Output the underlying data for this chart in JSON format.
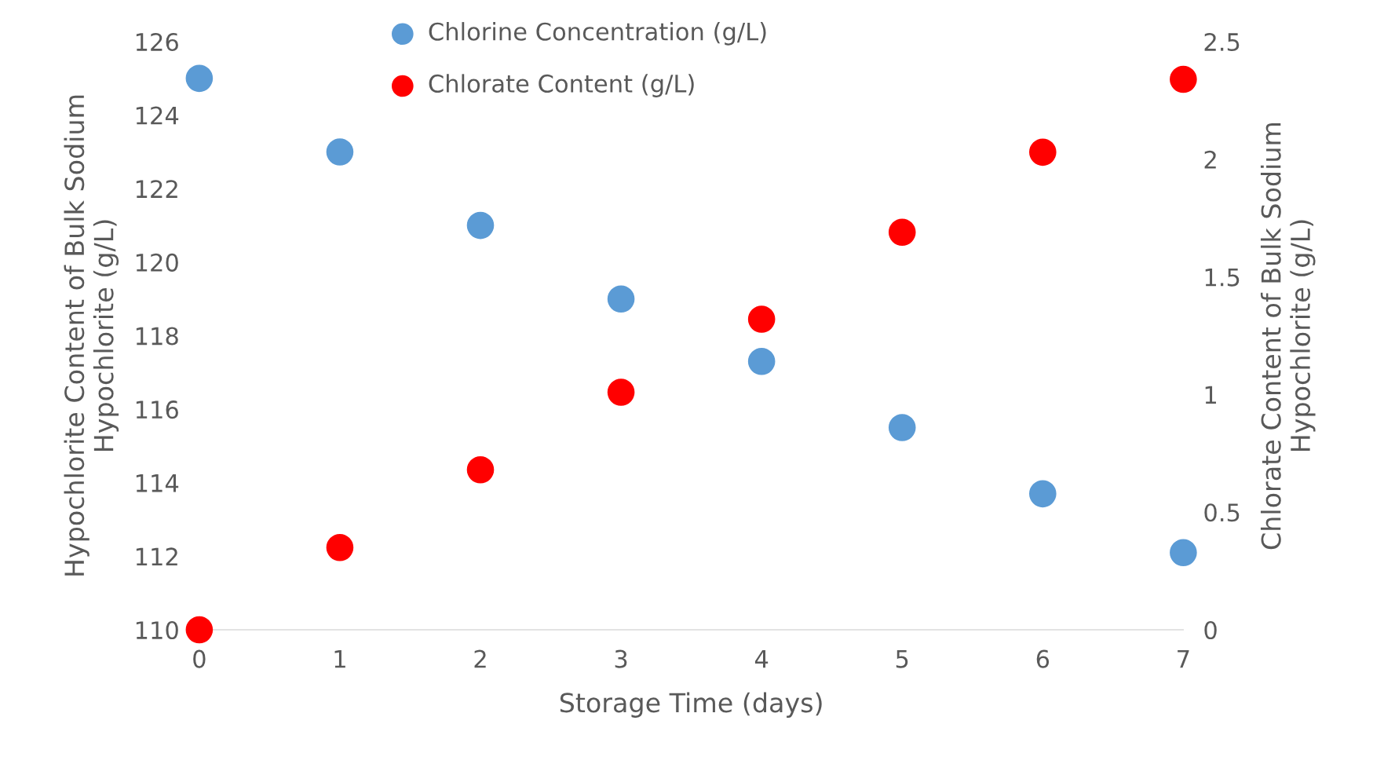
{
  "chart_data": {
    "type": "scatter",
    "xlabel": "Storage Time (days)",
    "ylabel": "Hypochlorite Content of Bulk Sodium\nHypochlorite (g/L)",
    "y2label": "Chlorate Content of Bulk Sodium\nHypochlorite (g/L)",
    "x": [
      0,
      1,
      2,
      3,
      4,
      5,
      6,
      7
    ],
    "series": [
      {
        "name": "Chlorine Concentration (g/L)",
        "color": "#5b9bd5",
        "values": [
          125.0,
          123.0,
          121.0,
          119.0,
          117.3,
          115.5,
          113.7,
          112.1
        ]
      },
      {
        "name": "Chlorate Content (g/L)",
        "color": "#ff0000",
        "axis": "y2",
        "values": [
          0,
          0.35,
          0.68,
          1.01,
          1.32,
          1.69,
          2.03,
          2.34
        ]
      }
    ],
    "xlim": [
      0,
      7
    ],
    "xticks": [
      0,
      1,
      2,
      3,
      4,
      5,
      6,
      7
    ],
    "ylim": [
      110,
      126
    ],
    "yticks": [
      110,
      112,
      114,
      116,
      118,
      120,
      122,
      124,
      126
    ],
    "y2lim": [
      0,
      2.5
    ],
    "y2ticks": [
      0,
      0.5,
      1,
      1.5,
      2,
      2.5
    ],
    "legend": "top",
    "marker": "circle",
    "grid": false
  }
}
